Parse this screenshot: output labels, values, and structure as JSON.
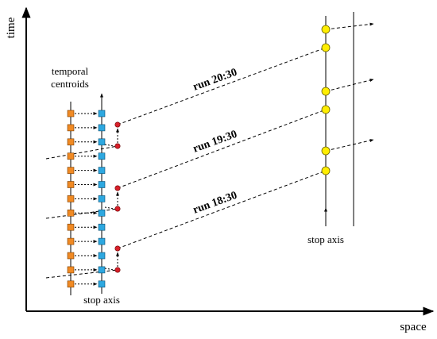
{
  "axes": {
    "y_label": "time",
    "x_label": "space"
  },
  "labels": {
    "centroids_line1": "temporal",
    "centroids_line2": "centroids",
    "left_stop_axis": "stop axis",
    "right_stop_axis": "stop axis"
  },
  "runs": [
    "run 20:30",
    "run 19:30",
    "run 18:30"
  ]
}
